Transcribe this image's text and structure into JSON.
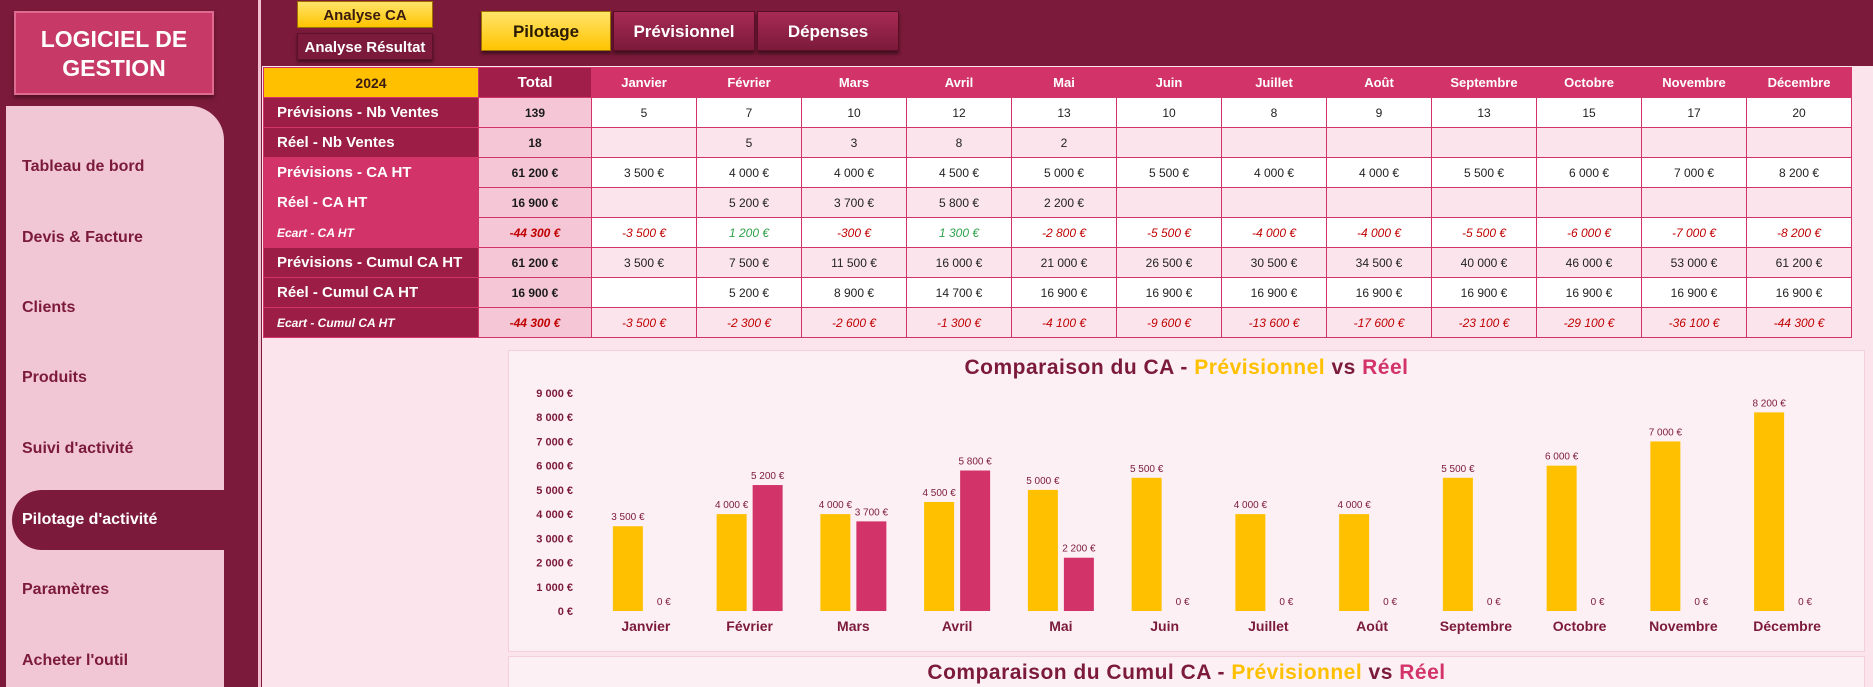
{
  "logo": {
    "line1": "LOGICIEL  DE",
    "line2": "GESTION"
  },
  "sidebar": {
    "items": [
      {
        "label": "Tableau de bord"
      },
      {
        "label": "Devis & Facture"
      },
      {
        "label": "Clients"
      },
      {
        "label": "Produits"
      },
      {
        "label": "Suivi d'activité"
      },
      {
        "label": "Pilotage d'activité",
        "active": true
      },
      {
        "label": "Paramètres"
      },
      {
        "label": "Acheter l'outil"
      }
    ]
  },
  "toolbar": {
    "analyse_ca": "Analyse CA",
    "analyse_resultat": "Analyse Résultat",
    "tabs": [
      {
        "label": "Pilotage",
        "active": true
      },
      {
        "label": "Prévisionnel"
      },
      {
        "label": "Dépenses"
      }
    ]
  },
  "table": {
    "year": "2024",
    "total_header": "Total",
    "months": [
      "Janvier",
      "Février",
      "Mars",
      "Avril",
      "Mai",
      "Juin",
      "Juillet",
      "Août",
      "Septembre",
      "Octobre",
      "Novembre",
      "Décembre"
    ],
    "rows": [
      {
        "label": "Prévisions - Nb Ventes",
        "total": "139",
        "values": [
          "5",
          "7",
          "10",
          "12",
          "13",
          "10",
          "8",
          "9",
          "13",
          "15",
          "17",
          "20"
        ],
        "style": "dark"
      },
      {
        "label": "Réel - Nb Ventes",
        "total": "18",
        "values": [
          "",
          "5",
          "3",
          "8",
          "2",
          "",
          "",
          "",
          "",
          "",
          "",
          ""
        ],
        "style": "dark"
      },
      {
        "label": "Prévisions - CA HT",
        "total": "61 200 €",
        "values": [
          "3 500 €",
          "4 000 €",
          "4 000 €",
          "4 500 €",
          "5 000 €",
          "5 500 €",
          "4 000 €",
          "4 000 €",
          "5 500 €",
          "6 000 €",
          "7 000 €",
          "8 200 €"
        ],
        "style": "pink"
      },
      {
        "label": "Réel - CA HT",
        "total": "16 900 €",
        "values": [
          "",
          "5 200 €",
          "3 700 €",
          "5 800 €",
          "2 200 €",
          "",
          "",
          "",
          "",
          "",
          "",
          ""
        ],
        "style": "pink"
      },
      {
        "label": "Ecart - CA HT",
        "total": "-44 300 €",
        "values": [
          "-3 500 €",
          "1 200 €",
          "-300 €",
          "1 300 €",
          "-2 800 €",
          "-5 500 €",
          "-4 000 €",
          "-4 000 €",
          "-5 500 €",
          "-6 000 €",
          "-7 000 €",
          "-8 200 €"
        ],
        "style": "pink-small",
        "ecart": true
      },
      {
        "label": "Prévisions - Cumul CA HT",
        "total": "61 200 €",
        "values": [
          "3 500 €",
          "7 500 €",
          "11 500 €",
          "16 000 €",
          "21 000 €",
          "26 500 €",
          "30 500 €",
          "34 500 €",
          "40 000 €",
          "46 000 €",
          "53 000 €",
          "61 200 €"
        ],
        "style": "dark"
      },
      {
        "label": "Réel - Cumul CA HT",
        "total": "16 900 €",
        "values": [
          "",
          "5 200 €",
          "8 900 €",
          "14 700 €",
          "16 900 €",
          "16 900 €",
          "16 900 €",
          "16 900 €",
          "16 900 €",
          "16 900 €",
          "16 900 €",
          "16 900 €"
        ],
        "style": "dark"
      },
      {
        "label": "Ecart - Cumul CA HT",
        "total": "-44 300 €",
        "values": [
          "-3 500 €",
          "-2 300 €",
          "-2 600 €",
          "-1 300 €",
          "-4 100 €",
          "-9 600 €",
          "-13 600 €",
          "-17 600 €",
          "-23 100 €",
          "-29 100 €",
          "-36 100 €",
          "-44 300 €"
        ],
        "style": "dark-small",
        "ecart": true
      }
    ]
  },
  "charts": {
    "chart1_title": {
      "a": "Comparaison du CA - ",
      "b": "Prévisionnel",
      "c": " vs ",
      "d": "Réel"
    },
    "chart2_title": {
      "a": "Comparaison du Cumul CA - ",
      "b": "Prévisionnel",
      "c": " vs ",
      "d": "Réel"
    }
  },
  "chart_data": {
    "type": "bar",
    "categories": [
      "Janvier",
      "Février",
      "Mars",
      "Avril",
      "Mai",
      "Juin",
      "Juillet",
      "Août",
      "Septembre",
      "Octobre",
      "Novembre",
      "Décembre"
    ],
    "series": [
      {
        "name": "Prévisionnel",
        "color": "#ffc000",
        "values": [
          3500,
          4000,
          4000,
          4500,
          5000,
          5500,
          4000,
          4000,
          5500,
          6000,
          7000,
          8200
        ]
      },
      {
        "name": "Réel",
        "color": "#d2346a",
        "values": [
          0,
          5200,
          3700,
          5800,
          2200,
          0,
          0,
          0,
          0,
          0,
          0,
          0
        ]
      }
    ],
    "ylim": [
      0,
      9000
    ],
    "yticks": [
      "0 €",
      "1 000 €",
      "2 000 €",
      "3 000 €",
      "4 000 €",
      "5 000 €",
      "6 000 €",
      "7 000 €",
      "8 000 €",
      "9 000 €"
    ],
    "data_labels_prev": [
      "3 500 €",
      "4 000 €",
      "4 000 €",
      "4 500 €",
      "5 000 €",
      "5 500 €",
      "4 000 €",
      "4 000 €",
      "5 500 €",
      "6 000 €",
      "7 000 €",
      "8 200 €"
    ],
    "data_labels_reel": [
      "0 €",
      "5 200 €",
      "3 700 €",
      "5 800 €",
      "2 200 €",
      "0 €",
      "0 €",
      "0 €",
      "0 €",
      "0 €",
      "0 €",
      "0 €"
    ]
  }
}
